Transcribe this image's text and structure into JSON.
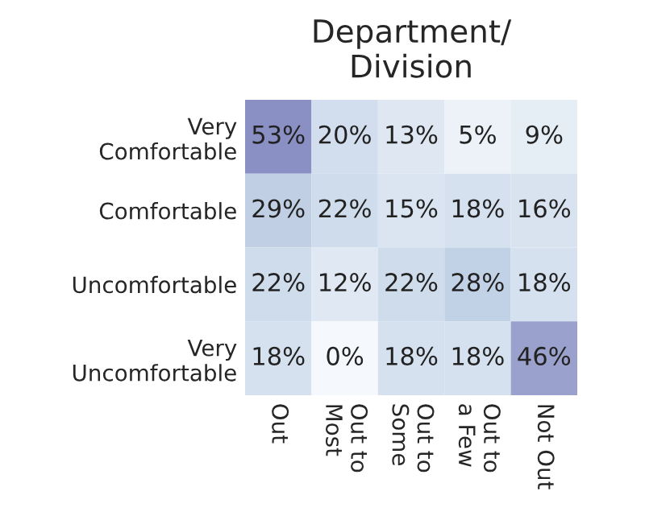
{
  "chart_data": {
    "type": "heatmap",
    "title": "Department/\nDivision",
    "categories": [
      "Out",
      "Out to\nMost",
      "Out to\nSome",
      "Out to\na Few",
      "Not Out"
    ],
    "y_categories": [
      "Very\nComfortable",
      "Comfortable",
      "Uncomfortable",
      "Very\nUncomfortable"
    ],
    "cells": [
      [
        53,
        20,
        13,
        5,
        9
      ],
      [
        29,
        22,
        15,
        18,
        16
      ],
      [
        22,
        12,
        22,
        28,
        18
      ],
      [
        18,
        0,
        18,
        18,
        46
      ]
    ],
    "cell_labels": [
      [
        "53%",
        "20%",
        "13%",
        "5%",
        "9%"
      ],
      [
        "29%",
        "22%",
        "15%",
        "18%",
        "16%"
      ],
      [
        "22%",
        "12%",
        "22%",
        "28%",
        "18%"
      ],
      [
        "18%",
        "0%",
        "18%",
        "18%",
        "46%"
      ]
    ]
  }
}
